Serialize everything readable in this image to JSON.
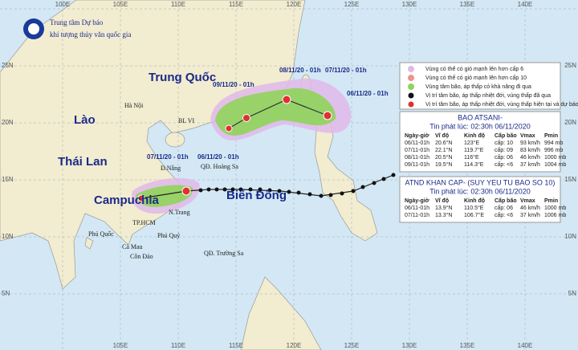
{
  "header": {
    "line1": "Trung tâm Dự báo",
    "line2": "khí tượng thủy văn quốc gia"
  },
  "lon_labels_top": [
    "100E",
    "105E",
    "110E",
    "115E",
    "120E",
    "125E",
    "130E",
    "135E",
    "140E"
  ],
  "lon_labels_bottom": [
    "105E",
    "110E",
    "115E",
    "120E",
    "125E",
    "130E",
    "135E",
    "140E"
  ],
  "lat_labels_left": [
    "25N",
    "20N",
    "15N",
    "10N",
    "5N"
  ],
  "lat_labels_right": [
    "25N",
    "20N",
    "15N",
    "10N",
    "5N"
  ],
  "regions": [
    "Trung Quốc",
    "Lào",
    "Thái Lan",
    "Campuchia",
    "Biển Đông"
  ],
  "places": [
    "Hà Nội",
    "BL VI",
    "Đ.Nẵng",
    "QĐ. Hoàng Sa",
    "N.Trang",
    "TP.HCM",
    "Phú Quốc",
    "Phú Quý",
    "Cà Mau",
    "Côn Đảo",
    "QĐ. Trường Sa"
  ],
  "track_labels": [
    "08/11/20 - 01h",
    "07/11/20 - 01h",
    "06/11/20 - 01h",
    "09/11/20 - 01h",
    "07/11/20 - 01h",
    "06/11/20 - 01h"
  ],
  "legend": [
    "Vùng có thể có gió mạnh lên hơn cấp 6",
    "Vùng có thể có gió mạnh lên hơn cấp 10",
    "Vùng tâm bão, áp thấp có khả năng đi qua",
    "Vị trí tâm bão, áp thấp nhiệt đới, vùng thấp đã qua",
    "Vị trí tâm bão, áp thấp nhiệt đới, vùng thấp hiện tại và dự báo"
  ],
  "tables": [
    {
      "title": "BAO ATSANI-",
      "issued": "Tin phát lúc: 02:30h 06/11/2020",
      "headers": [
        "Ngày-giờ",
        "Vĩ độ",
        "Kinh độ",
        "Cấp bão",
        "Vmax",
        "Pmin"
      ],
      "rows": [
        [
          "06/11-01h",
          "20.6°N",
          "123°E",
          "cấp: 10",
          "93 km/h",
          "994 mb"
        ],
        [
          "07/11-01h",
          "22.1°N",
          "119.7°E",
          "cấp: 09",
          "83 km/h",
          "996 mb"
        ],
        [
          "08/11-01h",
          "20.5°N",
          "116°E",
          "cấp: 06",
          "46 km/h",
          "1000 mb"
        ],
        [
          "09/11-01h",
          "19.5°N",
          "114.3°E",
          "cấp: <6",
          "37 km/h",
          "1004 mb"
        ]
      ]
    },
    {
      "title": "ATND KHAN CAP- (SUY YEU TU BAO SO 10)",
      "issued": "Tin phát lúc: 02:30h 06/11/2020",
      "headers": [
        "Ngày-giờ",
        "Vĩ độ",
        "Kinh độ",
        "Cấp bão",
        "Vmax",
        "Pmin"
      ],
      "rows": [
        [
          "06/11-01h",
          "13.9°N",
          "110.5°E",
          "cấp: 06",
          "46 km/h",
          "1000 mb"
        ],
        [
          "07/11-01h",
          "13.3°N",
          "106.7°E",
          "cấp: <6",
          "37 km/h",
          "1006 mb"
        ]
      ]
    }
  ]
}
